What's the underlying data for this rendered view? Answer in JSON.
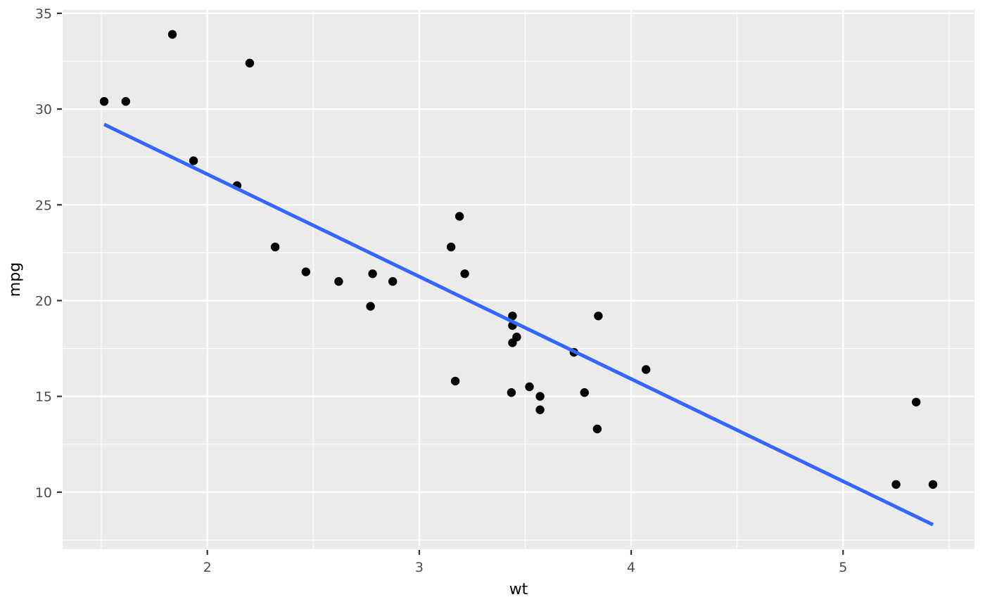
{
  "chart_data": {
    "type": "scatter",
    "title": "",
    "xlabel": "wt",
    "ylabel": "mpg",
    "xlim": [
      1.317,
      5.62
    ],
    "ylim": [
      7.02,
      35.18
    ],
    "x_major_ticks": [
      2,
      3,
      4,
      5
    ],
    "x_minor_ticks": [
      1.5,
      2.5,
      3.5,
      4.5,
      5.5
    ],
    "y_major_ticks": [
      10,
      15,
      20,
      25,
      30,
      35
    ],
    "y_minor_ticks": [
      7.5,
      12.5,
      17.5,
      22.5,
      27.5,
      32.5
    ],
    "grid": true,
    "legend_position": "none",
    "series": [
      {
        "name": "points",
        "type": "scatter",
        "x": [
          2.62,
          2.875,
          2.32,
          3.215,
          3.44,
          3.46,
          3.57,
          3.19,
          3.15,
          3.44,
          3.44,
          4.07,
          3.73,
          3.78,
          5.25,
          5.424,
          5.345,
          2.2,
          1.615,
          1.835,
          2.465,
          3.52,
          3.435,
          3.84,
          3.845,
          1.935,
          2.14,
          1.513,
          3.17,
          2.77,
          3.57,
          2.78
        ],
        "y": [
          21.0,
          21.0,
          22.8,
          21.4,
          18.7,
          18.1,
          14.3,
          24.4,
          22.8,
          19.2,
          17.8,
          16.4,
          17.3,
          15.2,
          10.4,
          10.4,
          14.7,
          32.4,
          30.4,
          33.9,
          21.5,
          15.5,
          15.2,
          13.3,
          19.2,
          27.3,
          26.0,
          30.4,
          15.8,
          19.7,
          15.0,
          21.4
        ]
      },
      {
        "name": "linear-fit",
        "type": "line",
        "x": [
          1.513,
          5.424
        ],
        "y": [
          29.2,
          8.3
        ]
      }
    ],
    "colors": {
      "panel_background": "#EBEBEB",
      "gridline": "#FFFFFF",
      "point": "#000000",
      "fit_line": "#3366FF",
      "tick_text": "#4D4D4D",
      "axis_title": "#000000",
      "tick_mark": "#333333"
    }
  }
}
